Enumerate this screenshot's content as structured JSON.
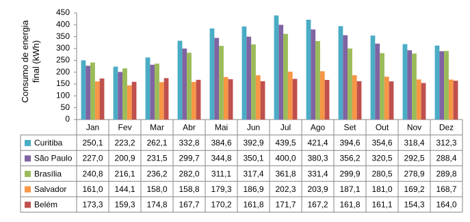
{
  "chart_data": {
    "type": "bar",
    "y_label": "Consumo de energia final (kWh)",
    "categories": [
      "Jan",
      "Fev",
      "Mar",
      "Abr",
      "Mai",
      "Jun",
      "Jul",
      "Ago",
      "Set",
      "Out",
      "Nov",
      "Dez"
    ],
    "series": [
      {
        "name": "Curitiba",
        "color": "#4bacc6",
        "values": [
          250.1,
          223.2,
          262.1,
          332.8,
          384.6,
          392.9,
          439.5,
          421.4,
          394.6,
          354.6,
          318.4,
          312.3
        ],
        "value_labels": [
          "250,1",
          "223,2",
          "262,1",
          "332,8",
          "384,6",
          "392,9",
          "439,5",
          "421,4",
          "394,6",
          "354,6",
          "318,4",
          "312,3"
        ]
      },
      {
        "name": "São Paulo",
        "color": "#8064a2",
        "values": [
          227.0,
          200.9,
          231.5,
          299.7,
          344.8,
          350.1,
          400.0,
          380.3,
          356.2,
          320.5,
          292.5,
          288.4
        ],
        "value_labels": [
          "227,0",
          "200,9",
          "231,5",
          "299,7",
          "344,8",
          "350,1",
          "400,0",
          "380,3",
          "356,2",
          "320,5",
          "292,5",
          "288,4"
        ]
      },
      {
        "name": "Brasília",
        "color": "#9bbb59",
        "values": [
          240.8,
          216.1,
          236.2,
          282.0,
          311.1,
          317.4,
          361.8,
          331.4,
          299.9,
          280.5,
          278.9,
          289.8
        ],
        "value_labels": [
          "240,8",
          "216,1",
          "236,2",
          "282,0",
          "311,1",
          "317,4",
          "361,8",
          "331,4",
          "299,9",
          "280,5",
          "278,9",
          "289,8"
        ]
      },
      {
        "name": "Salvador",
        "color": "#f79646",
        "values": [
          161.0,
          144.1,
          158.0,
          158.8,
          179.3,
          186.9,
          202.3,
          203.9,
          187.1,
          181.0,
          169.2,
          168.7
        ],
        "value_labels": [
          "161,0",
          "144,1",
          "158,0",
          "158,8",
          "179,3",
          "186,9",
          "202,3",
          "203,9",
          "187,1",
          "181,0",
          "169,2",
          "168,7"
        ]
      },
      {
        "name": "Belém",
        "color": "#c0504d",
        "values": [
          173.3,
          159.3,
          174.8,
          167.7,
          170.2,
          161.8,
          171.7,
          167.2,
          161.8,
          161.1,
          154.3,
          164.0
        ],
        "value_labels": [
          "173,3",
          "159,3",
          "174,8",
          "167,7",
          "170,2",
          "161,8",
          "171,7",
          "167,2",
          "161,8",
          "161,1",
          "154,3",
          "164,0"
        ]
      }
    ],
    "ylim": [
      0,
      450
    ],
    "yticks": [
      0,
      50,
      100,
      150,
      200,
      250,
      300,
      350,
      400,
      450
    ],
    "grid": false
  }
}
